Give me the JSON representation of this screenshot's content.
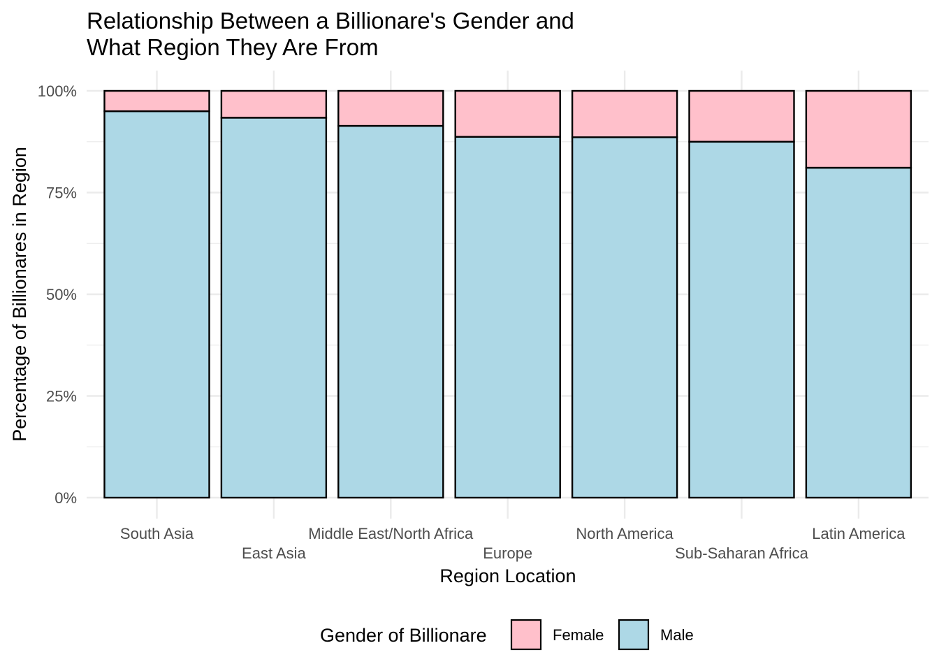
{
  "chart_data": {
    "type": "bar",
    "stacked": "percent",
    "title_lines": [
      "Relationship Between a Billionare's Gender and",
      "What Region They Are From"
    ],
    "xlabel": "Region Location",
    "ylabel": "Percentage of Billionares in Region",
    "ylim": [
      0,
      100
    ],
    "y_ticks": [
      0,
      25,
      50,
      75,
      100
    ],
    "y_tick_labels": [
      "0%",
      "25%",
      "50%",
      "75%",
      "100%"
    ],
    "grid": true,
    "categories": [
      "South Asia",
      "East Asia",
      "Middle East/North Africa",
      "Europe",
      "North America",
      "Sub-Saharan Africa",
      "Latin America"
    ],
    "series": [
      {
        "name": "Male",
        "color": "#ADD8E6",
        "values": [
          95.0,
          93.4,
          91.4,
          88.7,
          88.6,
          87.5,
          81.1
        ]
      },
      {
        "name": "Female",
        "color": "#FFC0CB",
        "values": [
          5.0,
          6.6,
          8.6,
          11.3,
          11.4,
          12.5,
          18.9
        ]
      }
    ],
    "legend": {
      "title": "Gender of Billionare",
      "position": "bottom",
      "items": [
        {
          "label": "Female",
          "color": "#FFC0CB"
        },
        {
          "label": "Male",
          "color": "#ADD8E6"
        }
      ]
    }
  }
}
